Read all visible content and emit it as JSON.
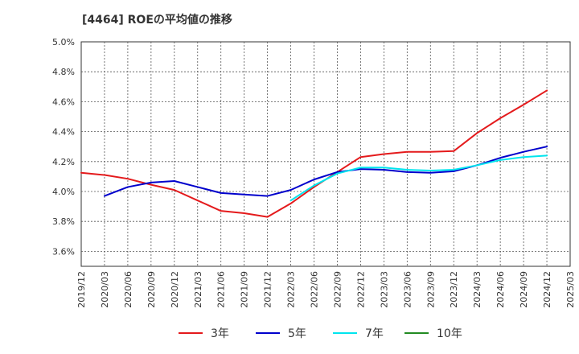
{
  "chart_data": {
    "type": "line",
    "title": "[4464]  ROEの平均値の推移",
    "xlabel": "",
    "ylabel": "",
    "ylim": [
      3.5,
      5.0
    ],
    "yticks": [
      3.6,
      3.8,
      4.0,
      4.2,
      4.4,
      4.6,
      4.8,
      5.0
    ],
    "ytick_labels": [
      "3.6%",
      "3.8%",
      "4.0%",
      "4.2%",
      "4.4%",
      "4.6%",
      "4.8%",
      "5.0%"
    ],
    "x_categories": [
      "2019/12",
      "2020/03",
      "2020/06",
      "2020/09",
      "2020/12",
      "2021/03",
      "2021/06",
      "2021/09",
      "2021/12",
      "2022/03",
      "2022/06",
      "2022/09",
      "2022/12",
      "2023/03",
      "2023/06",
      "2023/09",
      "2023/12",
      "2024/03",
      "2024/06",
      "2024/09",
      "2024/12",
      "2025/03"
    ],
    "grid": true,
    "legend_position": "bottom",
    "series": [
      {
        "name": "3年",
        "color": "#e41a1c",
        "values": [
          4.125,
          4.11,
          4.085,
          4.045,
          4.01,
          3.94,
          3.87,
          3.855,
          3.83,
          3.92,
          4.03,
          4.13,
          4.23,
          4.25,
          4.265,
          4.265,
          4.27,
          4.39,
          4.49,
          4.58,
          4.675,
          null
        ]
      },
      {
        "name": "5年",
        "color": "#0000cc",
        "values": [
          null,
          3.97,
          4.03,
          4.06,
          4.07,
          4.03,
          3.99,
          3.98,
          3.97,
          4.01,
          4.08,
          4.13,
          4.15,
          4.145,
          4.13,
          4.125,
          4.135,
          4.175,
          4.225,
          4.265,
          4.3,
          null
        ]
      },
      {
        "name": "7年",
        "color": "#00e5ee",
        "values": [
          null,
          null,
          null,
          null,
          null,
          null,
          null,
          null,
          null,
          3.94,
          4.04,
          4.12,
          4.16,
          4.16,
          4.145,
          4.14,
          4.145,
          4.175,
          4.21,
          4.23,
          4.24,
          null
        ]
      },
      {
        "name": "10年",
        "color": "#228b22",
        "values": [
          null,
          null,
          null,
          null,
          null,
          null,
          null,
          null,
          null,
          null,
          null,
          null,
          null,
          null,
          null,
          null,
          null,
          null,
          null,
          null,
          null,
          null
        ]
      }
    ]
  }
}
